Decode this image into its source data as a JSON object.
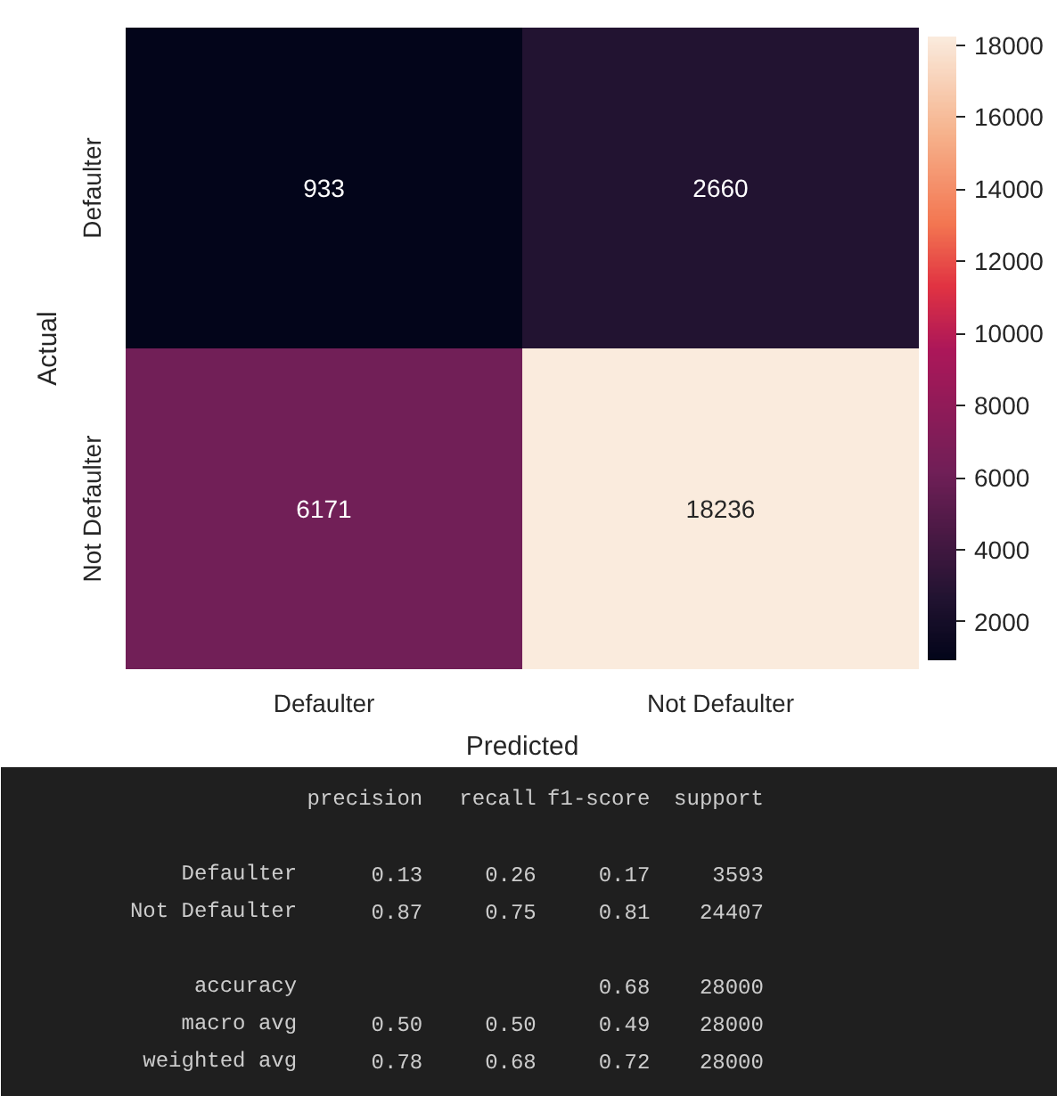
{
  "chart_data": [
    {
      "type": "heatmap",
      "xlabel": "Predicted",
      "ylabel": "Actual",
      "categories": [
        "Defaulter",
        "Not Defaulter"
      ],
      "y_categories": [
        "Defaulter",
        "Not Defaulter"
      ],
      "cells": [
        [
          933,
          2660
        ],
        [
          6171,
          18236
        ]
      ],
      "clim": [
        933,
        18236
      ],
      "cticks": [
        2000,
        4000,
        6000,
        8000,
        10000,
        12000,
        14000,
        16000,
        18000
      ],
      "data_labels": true
    },
    {
      "type": "other",
      "categories": [
        "precision",
        "recall",
        "f1-score",
        "support"
      ],
      "y_categories": [
        "Defaulter",
        "Not Defaulter",
        null,
        "accuracy",
        "macro avg",
        "weighted avg"
      ],
      "cell_labels": [
        [
          "0.13",
          "0.26",
          "0.17",
          "3593"
        ],
        [
          "0.87",
          "0.75",
          "0.81",
          "24407"
        ],
        [
          null,
          null,
          null,
          null
        ],
        [
          null,
          null,
          "0.68",
          "28000"
        ],
        [
          "0.50",
          "0.50",
          "0.49",
          "28000"
        ],
        [
          "0.78",
          "0.68",
          "0.72",
          "28000"
        ]
      ]
    }
  ]
}
